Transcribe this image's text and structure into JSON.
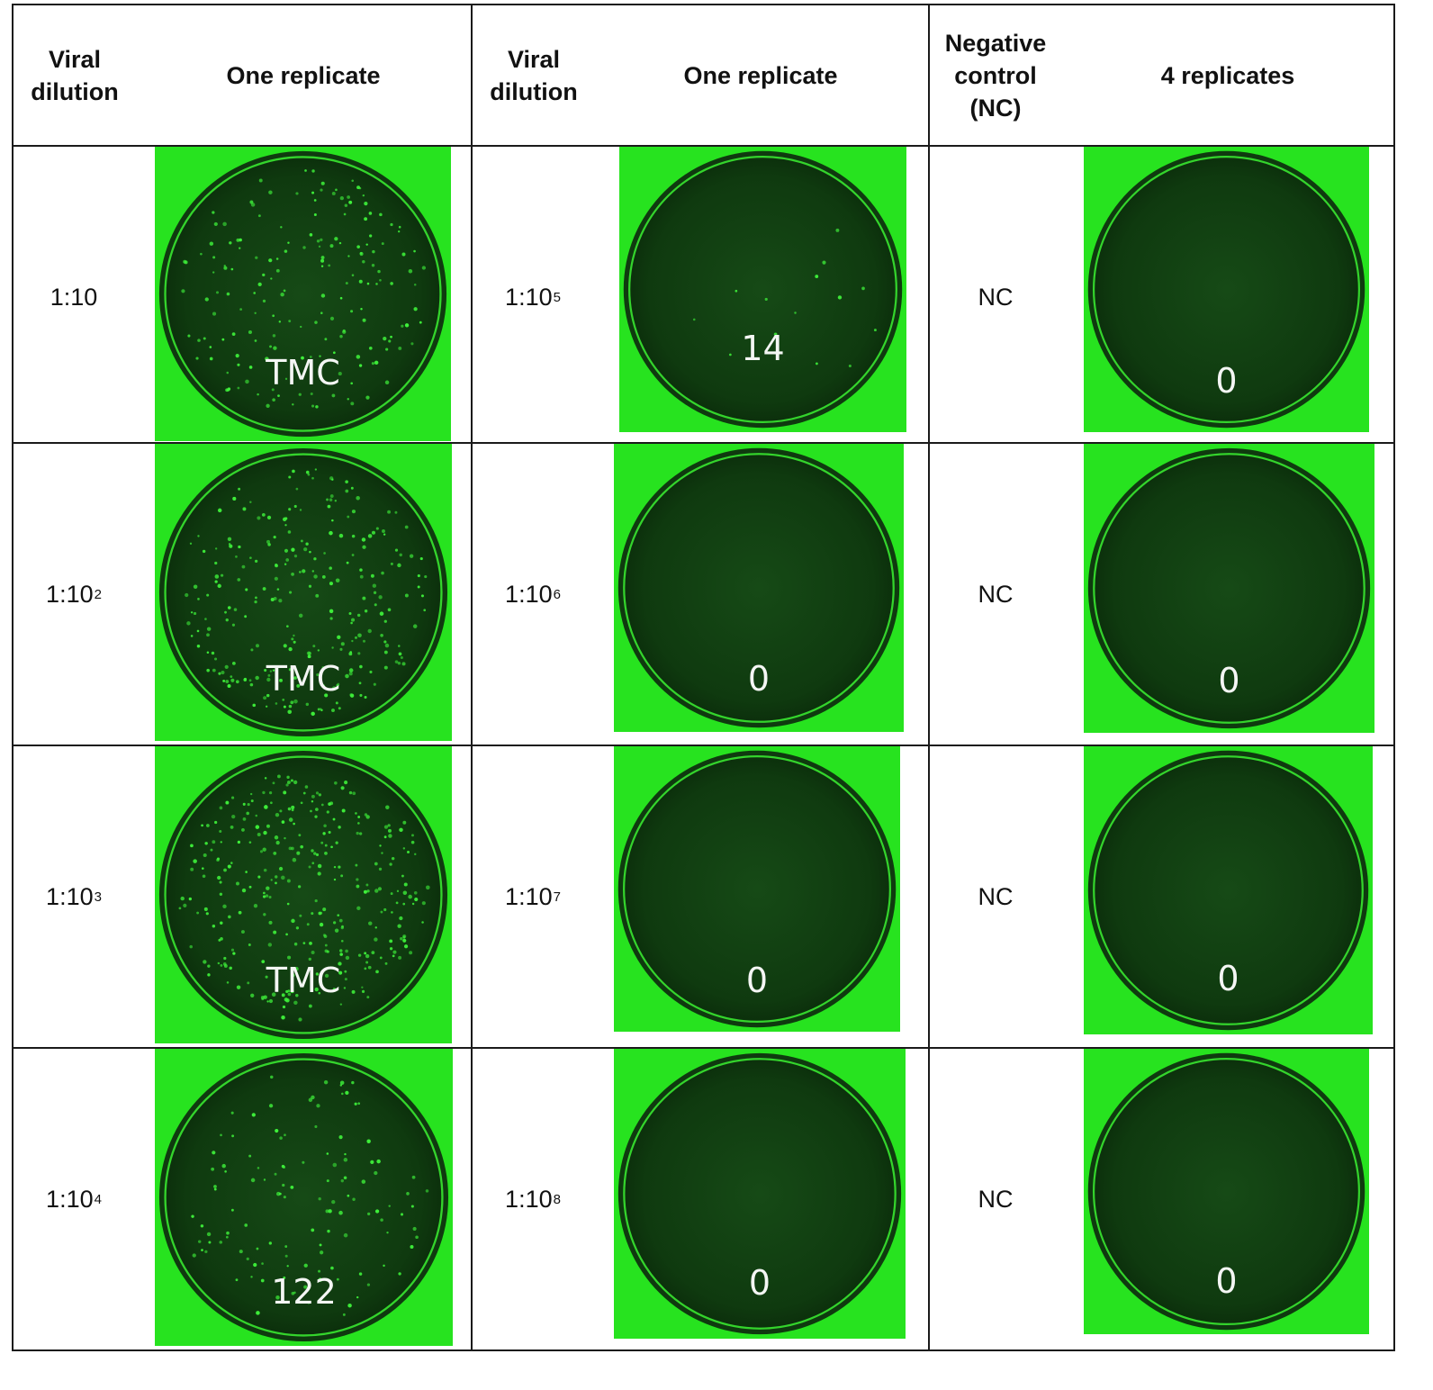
{
  "headers": {
    "col1_dilution": "Viral\ndilution",
    "col1_replicate": "One replicate",
    "col2_dilution": "Viral\ndilution",
    "col2_replicate": "One replicate",
    "col3_control": "Negative\ncontrol\n(NC)",
    "col3_replicates": "4 replicates"
  },
  "colors": {
    "well_rim": "#27e31f",
    "well_interior": "#0f3a0f",
    "plaque": "#3ef03a",
    "grid_line": "#1a1a1a"
  },
  "rows": [
    {
      "left": {
        "base": "1:10",
        "exp": "",
        "count": "TMC",
        "plaques": 180
      },
      "middle": {
        "base": "1:10",
        "exp": "5",
        "count": "14",
        "plaques": 14
      },
      "right": {
        "label": "NC",
        "count": "0",
        "plaques": 0
      }
    },
    {
      "left": {
        "base": "1:10",
        "exp": "2",
        "count": "TMC",
        "plaques": 260
      },
      "middle": {
        "base": "1:10",
        "exp": "6",
        "count": "0",
        "plaques": 0
      },
      "right": {
        "label": "NC",
        "count": "0",
        "plaques": 0
      }
    },
    {
      "left": {
        "base": "1:10",
        "exp": "3",
        "count": "TMC",
        "plaques": 320
      },
      "middle": {
        "base": "1:10",
        "exp": "7",
        "count": "0",
        "plaques": 0
      },
      "right": {
        "label": "NC",
        "count": "0",
        "plaques": 0
      }
    },
    {
      "left": {
        "base": "1:10",
        "exp": "4",
        "count": "122",
        "plaques": 122
      },
      "middle": {
        "base": "1:10",
        "exp": "8",
        "count": "0",
        "plaques": 0
      },
      "right": {
        "label": "NC",
        "count": "0",
        "plaques": 0
      }
    }
  ]
}
